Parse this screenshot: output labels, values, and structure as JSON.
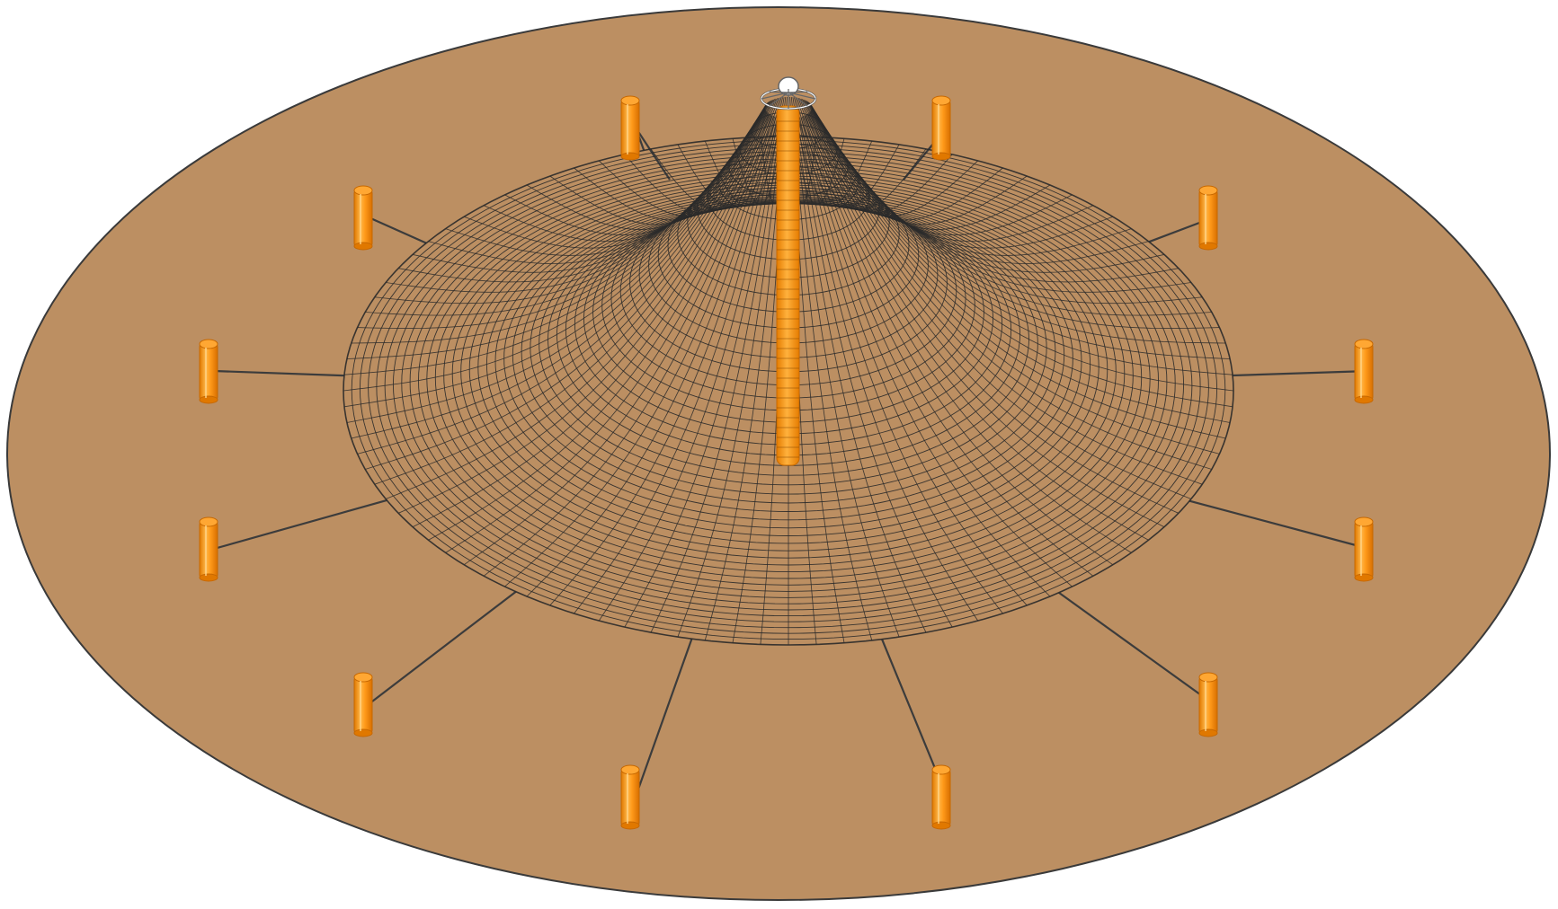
{
  "scene": {
    "ground_color": "#bc8f62",
    "ground_edge_color": "#3a3a3a",
    "mesh_color": "#2a2a2a",
    "anchor_color": "#ff9a1a",
    "anchor_highlight": "#ffd27a",
    "anchor_shadow": "#e07800",
    "cable_color": "#3c3c3c",
    "mast_color": "#ff9a1a",
    "head_color": "#ffffff",
    "mesh_rings": 46,
    "mesh_radials": 100,
    "anchor_count": 14
  }
}
